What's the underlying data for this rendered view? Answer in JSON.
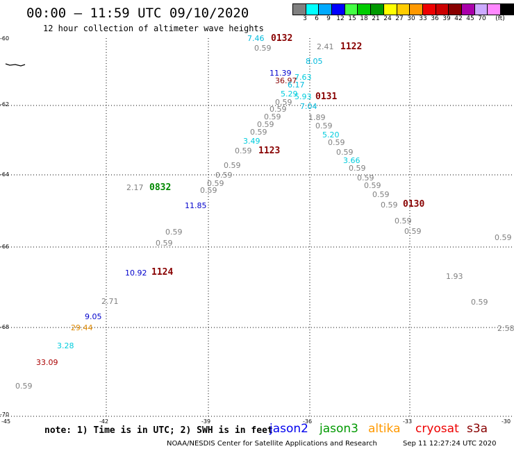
{
  "header": {
    "title": "00:00 – 11:59 UTC 09/10/2020",
    "subtitle": "12 hour collection of altimeter wave heights"
  },
  "legend": {
    "bins": [
      {
        "label": "3",
        "color": "#808080"
      },
      {
        "label": "6",
        "color": "#00ffff"
      },
      {
        "label": "9",
        "color": "#00aaff"
      },
      {
        "label": "12",
        "color": "#0000ff"
      },
      {
        "label": "15",
        "color": "#44ff44"
      },
      {
        "label": "18",
        "color": "#00cc00"
      },
      {
        "label": "21",
        "color": "#009900"
      },
      {
        "label": "24",
        "color": "#ffff00"
      },
      {
        "label": "27",
        "color": "#ffcc00"
      },
      {
        "label": "30",
        "color": "#ff9900"
      },
      {
        "label": "33",
        "color": "#ee0000"
      },
      {
        "label": "36",
        "color": "#cc0000"
      },
      {
        "label": "39",
        "color": "#880000"
      },
      {
        "label": "42",
        "color": "#aa00aa"
      },
      {
        "label": "45",
        "color": "#ccaaff"
      },
      {
        "label": "70",
        "color": "#ff88ff"
      },
      {
        "label": "",
        "color": "#000000"
      }
    ],
    "unit": "(ft)"
  },
  "map": {
    "lon_ticks": [
      "-45",
      "-42",
      "-39",
      "-36",
      "-33",
      "-30"
    ],
    "lat_ticks": [
      "-60",
      "-62",
      "-64",
      "-66",
      "-68",
      "-70"
    ],
    "observations": [
      {
        "text": "7.46",
        "color": "#00bbdd"
      },
      {
        "text": "0.59",
        "color": "#808080"
      },
      {
        "text": "2.41",
        "color": "#808080"
      },
      {
        "text": "8.05",
        "color": "#00bbdd"
      },
      {
        "text": "11.39",
        "color": "#0000cc"
      },
      {
        "text": "7.63",
        "color": "#00ccdd"
      },
      {
        "text": "36.97",
        "color": "#880000"
      },
      {
        "text": "6.17",
        "color": "#00bbdd"
      },
      {
        "text": "5.29",
        "color": "#00ccdd"
      },
      {
        "text": "5.93",
        "color": "#00ccdd"
      },
      {
        "text": "0.59",
        "color": "#808080"
      },
      {
        "text": "7.04",
        "color": "#00bbdd"
      },
      {
        "text": "0.59",
        "color": "#808080"
      },
      {
        "text": "0.59",
        "color": "#808080"
      },
      {
        "text": "1.89",
        "color": "#808080"
      },
      {
        "text": "0.59",
        "color": "#808080"
      },
      {
        "text": "0.59",
        "color": "#808080"
      },
      {
        "text": "0.59",
        "color": "#808080"
      },
      {
        "text": "5.20",
        "color": "#00ccdd"
      },
      {
        "text": "3.49",
        "color": "#00ccdd"
      },
      {
        "text": "0.59",
        "color": "#808080"
      },
      {
        "text": "0.59",
        "color": "#808080"
      },
      {
        "text": "0.59",
        "color": "#808080"
      },
      {
        "text": "0.59",
        "color": "#808080"
      },
      {
        "text": "3.66",
        "color": "#00ccdd"
      },
      {
        "text": "0.59",
        "color": "#808080"
      },
      {
        "text": "0.59",
        "color": "#808080"
      },
      {
        "text": "0.59",
        "color": "#808080"
      },
      {
        "text": "0.59",
        "color": "#808080"
      },
      {
        "text": "0.59",
        "color": "#808080"
      },
      {
        "text": "0.59",
        "color": "#808080"
      },
      {
        "text": "2.17",
        "color": "#808080"
      },
      {
        "text": "0.59",
        "color": "#808080"
      },
      {
        "text": "0.59",
        "color": "#808080"
      },
      {
        "text": "11.85",
        "color": "#0000cc"
      },
      {
        "text": "0.59",
        "color": "#808080"
      },
      {
        "text": "0.59",
        "color": "#808080"
      },
      {
        "text": "0.59",
        "color": "#808080"
      },
      {
        "text": "0.59",
        "color": "#808080"
      },
      {
        "text": "0.59",
        "color": "#808080"
      },
      {
        "text": "10.92",
        "color": "#0000cc"
      },
      {
        "text": "1.93",
        "color": "#808080"
      },
      {
        "text": "0.59",
        "color": "#808080"
      },
      {
        "text": "2.71",
        "color": "#808080"
      },
      {
        "text": "9.05",
        "color": "#0000cc"
      },
      {
        "text": "29.44",
        "color": "#dd8800"
      },
      {
        "text": "2.58",
        "color": "#808080"
      },
      {
        "text": "3.28",
        "color": "#00ccdd"
      },
      {
        "text": "33.09",
        "color": "#aa0000"
      },
      {
        "text": "0.59",
        "color": "#808080"
      }
    ],
    "pass_labels": [
      {
        "text": "0132",
        "color": "#880000"
      },
      {
        "text": "1122",
        "color": "#880000"
      },
      {
        "text": "0131",
        "color": "#880000"
      },
      {
        "text": "1123",
        "color": "#880000"
      },
      {
        "text": "0832",
        "color": "#008800"
      },
      {
        "text": "0130",
        "color": "#880000"
      },
      {
        "text": "1124",
        "color": "#880000"
      }
    ]
  },
  "footer": {
    "note": "note: 1) Time is in UTC; 2) SWH is in feet",
    "satellites": [
      {
        "name": "jason2",
        "color": "#0000ee"
      },
      {
        "name": "jason3",
        "color": "#009900"
      },
      {
        "name": "altika",
        "color": "#ff9900"
      },
      {
        "name": "cryosat",
        "color": "#ee0000"
      },
      {
        "name": "s3a",
        "color": "#880000"
      }
    ],
    "credit": "NOAA/NESDIS Center for Satellite Applications and Research",
    "timestamp": "Sep 11 12:27:24 UTC 2020"
  }
}
